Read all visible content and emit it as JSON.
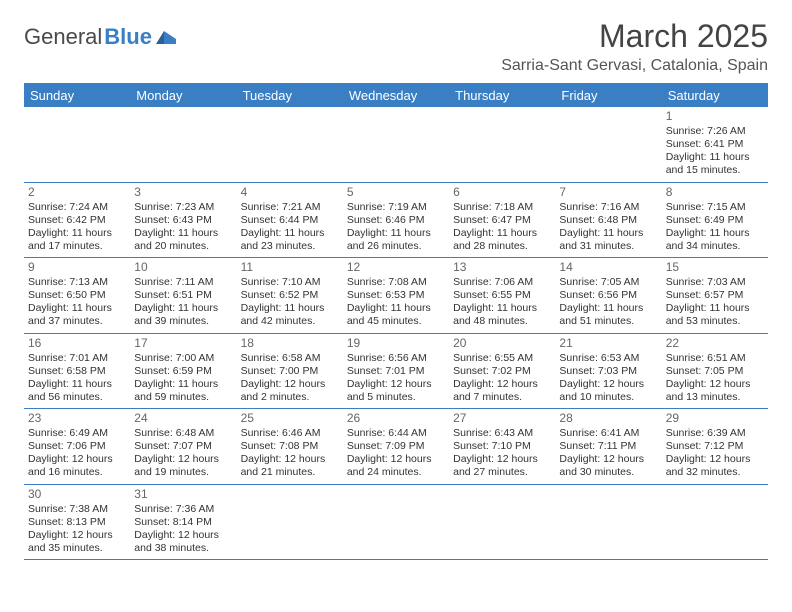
{
  "logo": {
    "part1": "General",
    "part2": "Blue"
  },
  "title": "March 2025",
  "location": "Sarria-Sant Gervasi, Catalonia, Spain",
  "colors": {
    "header_bg": "#3a7fc4",
    "header_text": "#ffffff",
    "border": "#3a7fc4",
    "text": "#333333",
    "title_text": "#444444"
  },
  "day_headers": [
    "Sunday",
    "Monday",
    "Tuesday",
    "Wednesday",
    "Thursday",
    "Friday",
    "Saturday"
  ],
  "weeks": [
    [
      null,
      null,
      null,
      null,
      null,
      null,
      {
        "n": "1",
        "sunrise": "7:26 AM",
        "sunset": "6:41 PM",
        "daylight": "11 hours and 15 minutes."
      }
    ],
    [
      {
        "n": "2",
        "sunrise": "7:24 AM",
        "sunset": "6:42 PM",
        "daylight": "11 hours and 17 minutes."
      },
      {
        "n": "3",
        "sunrise": "7:23 AM",
        "sunset": "6:43 PM",
        "daylight": "11 hours and 20 minutes."
      },
      {
        "n": "4",
        "sunrise": "7:21 AM",
        "sunset": "6:44 PM",
        "daylight": "11 hours and 23 minutes."
      },
      {
        "n": "5",
        "sunrise": "7:19 AM",
        "sunset": "6:46 PM",
        "daylight": "11 hours and 26 minutes."
      },
      {
        "n": "6",
        "sunrise": "7:18 AM",
        "sunset": "6:47 PM",
        "daylight": "11 hours and 28 minutes."
      },
      {
        "n": "7",
        "sunrise": "7:16 AM",
        "sunset": "6:48 PM",
        "daylight": "11 hours and 31 minutes."
      },
      {
        "n": "8",
        "sunrise": "7:15 AM",
        "sunset": "6:49 PM",
        "daylight": "11 hours and 34 minutes."
      }
    ],
    [
      {
        "n": "9",
        "sunrise": "7:13 AM",
        "sunset": "6:50 PM",
        "daylight": "11 hours and 37 minutes."
      },
      {
        "n": "10",
        "sunrise": "7:11 AM",
        "sunset": "6:51 PM",
        "daylight": "11 hours and 39 minutes."
      },
      {
        "n": "11",
        "sunrise": "7:10 AM",
        "sunset": "6:52 PM",
        "daylight": "11 hours and 42 minutes."
      },
      {
        "n": "12",
        "sunrise": "7:08 AM",
        "sunset": "6:53 PM",
        "daylight": "11 hours and 45 minutes."
      },
      {
        "n": "13",
        "sunrise": "7:06 AM",
        "sunset": "6:55 PM",
        "daylight": "11 hours and 48 minutes."
      },
      {
        "n": "14",
        "sunrise": "7:05 AM",
        "sunset": "6:56 PM",
        "daylight": "11 hours and 51 minutes."
      },
      {
        "n": "15",
        "sunrise": "7:03 AM",
        "sunset": "6:57 PM",
        "daylight": "11 hours and 53 minutes."
      }
    ],
    [
      {
        "n": "16",
        "sunrise": "7:01 AM",
        "sunset": "6:58 PM",
        "daylight": "11 hours and 56 minutes."
      },
      {
        "n": "17",
        "sunrise": "7:00 AM",
        "sunset": "6:59 PM",
        "daylight": "11 hours and 59 minutes."
      },
      {
        "n": "18",
        "sunrise": "6:58 AM",
        "sunset": "7:00 PM",
        "daylight": "12 hours and 2 minutes."
      },
      {
        "n": "19",
        "sunrise": "6:56 AM",
        "sunset": "7:01 PM",
        "daylight": "12 hours and 5 minutes."
      },
      {
        "n": "20",
        "sunrise": "6:55 AM",
        "sunset": "7:02 PM",
        "daylight": "12 hours and 7 minutes."
      },
      {
        "n": "21",
        "sunrise": "6:53 AM",
        "sunset": "7:03 PM",
        "daylight": "12 hours and 10 minutes."
      },
      {
        "n": "22",
        "sunrise": "6:51 AM",
        "sunset": "7:05 PM",
        "daylight": "12 hours and 13 minutes."
      }
    ],
    [
      {
        "n": "23",
        "sunrise": "6:49 AM",
        "sunset": "7:06 PM",
        "daylight": "12 hours and 16 minutes."
      },
      {
        "n": "24",
        "sunrise": "6:48 AM",
        "sunset": "7:07 PM",
        "daylight": "12 hours and 19 minutes."
      },
      {
        "n": "25",
        "sunrise": "6:46 AM",
        "sunset": "7:08 PM",
        "daylight": "12 hours and 21 minutes."
      },
      {
        "n": "26",
        "sunrise": "6:44 AM",
        "sunset": "7:09 PM",
        "daylight": "12 hours and 24 minutes."
      },
      {
        "n": "27",
        "sunrise": "6:43 AM",
        "sunset": "7:10 PM",
        "daylight": "12 hours and 27 minutes."
      },
      {
        "n": "28",
        "sunrise": "6:41 AM",
        "sunset": "7:11 PM",
        "daylight": "12 hours and 30 minutes."
      },
      {
        "n": "29",
        "sunrise": "6:39 AM",
        "sunset": "7:12 PM",
        "daylight": "12 hours and 32 minutes."
      }
    ],
    [
      {
        "n": "30",
        "sunrise": "7:38 AM",
        "sunset": "8:13 PM",
        "daylight": "12 hours and 35 minutes."
      },
      {
        "n": "31",
        "sunrise": "7:36 AM",
        "sunset": "8:14 PM",
        "daylight": "12 hours and 38 minutes."
      },
      null,
      null,
      null,
      null,
      null
    ]
  ]
}
